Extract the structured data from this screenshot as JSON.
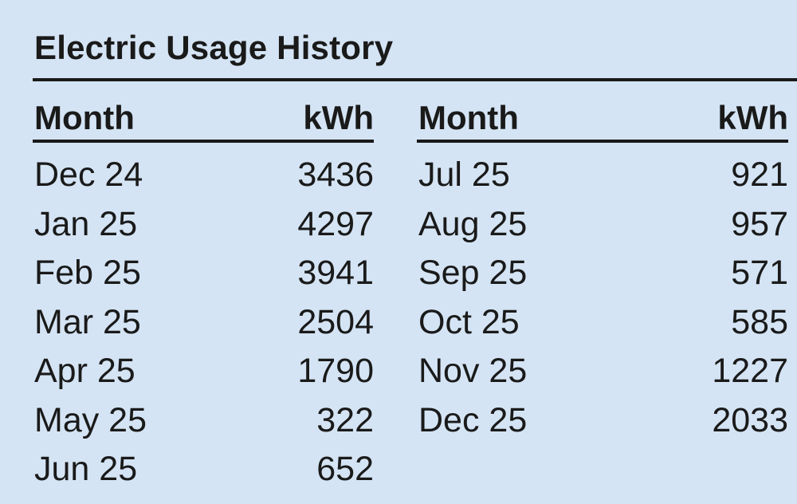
{
  "title": "Electric Usage History",
  "header": {
    "month": "Month",
    "kwh": "kWh"
  },
  "left_rows": [
    {
      "month": "Dec 24",
      "kwh": "3436"
    },
    {
      "month": "Jan 25",
      "kwh": "4297"
    },
    {
      "month": "Feb 25",
      "kwh": "3941"
    },
    {
      "month": "Mar 25",
      "kwh": "2504"
    },
    {
      "month": "Apr 25",
      "kwh": "1790"
    },
    {
      "month": "May 25",
      "kwh": "322"
    },
    {
      "month": "Jun 25",
      "kwh": "652"
    }
  ],
  "right_rows": [
    {
      "month": "Jul 25",
      "kwh": "921"
    },
    {
      "month": "Aug 25",
      "kwh": "957"
    },
    {
      "month": "Sep 25",
      "kwh": "571"
    },
    {
      "month": "Oct 25",
      "kwh": "585"
    },
    {
      "month": "Nov 25",
      "kwh": "1227"
    },
    {
      "month": "Dec 25",
      "kwh": "2033"
    }
  ]
}
